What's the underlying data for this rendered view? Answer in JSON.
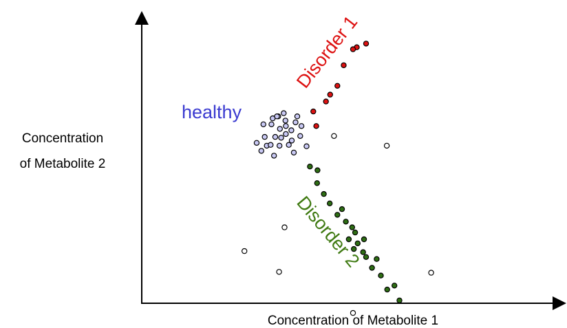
{
  "chart_data": {
    "type": "scatter",
    "title": "",
    "xlabel": "Concentration of Metabolite 1",
    "ylabel": [
      "Concentration",
      "of Metabolite 2"
    ],
    "xlim": [
      0,
      10
    ],
    "ylim": [
      0,
      10
    ],
    "grid": false,
    "colors": {
      "healthy": "#c9c9f4",
      "disorder1": "#dd1111",
      "disorder2": "#2e6e14",
      "outlier": "#ffffff",
      "healthy_label": "#3a3ad0",
      "disorder1_label": "#dd1111",
      "disorder2_label": "#3f7a12"
    },
    "annotations": {
      "healthy": "healthy",
      "disorder1": "Disorder 1",
      "disorder2": "Disorder 2"
    },
    "series": [
      {
        "key": "healthy",
        "points": [
          [
            3.68,
            6.55
          ],
          [
            3.41,
            6.21
          ],
          [
            3.16,
            5.83
          ],
          [
            2.96,
            5.52
          ],
          [
            3.27,
            6.11
          ],
          [
            3.48,
            5.55
          ],
          [
            3.13,
            5.17
          ],
          [
            2.91,
            5.83
          ],
          [
            3.07,
            6.27
          ],
          [
            3.6,
            5.28
          ],
          [
            3.75,
            5.86
          ],
          [
            3.36,
            6.66
          ],
          [
            3.1,
            6.48
          ],
          [
            3.41,
            5.93
          ],
          [
            3.26,
            5.52
          ],
          [
            3.54,
            6.06
          ],
          [
            3.78,
            6.21
          ],
          [
            3.23,
            6.55
          ],
          [
            3.4,
            6.4
          ],
          [
            3.64,
            6.34
          ],
          [
            2.83,
            5.34
          ],
          [
            2.72,
            5.62
          ],
          [
            3.2,
            6.55
          ],
          [
            2.88,
            6.27
          ],
          [
            3.55,
            5.7
          ],
          [
            3.9,
            5.5
          ],
          [
            3.05,
            5.55
          ],
          [
            3.3,
            5.8
          ]
        ]
      },
      {
        "key": "disorder1",
        "points": [
          [
            5.31,
            9.1
          ],
          [
            5.09,
            8.97
          ],
          [
            5.0,
            8.9
          ],
          [
            4.78,
            8.34
          ],
          [
            4.63,
            7.62
          ],
          [
            4.46,
            7.31
          ],
          [
            4.36,
            7.07
          ],
          [
            4.06,
            6.72
          ],
          [
            4.13,
            6.21
          ]
        ]
      },
      {
        "key": "disorder2",
        "points": [
          [
            3.98,
            4.79
          ],
          [
            4.16,
            4.66
          ],
          [
            4.15,
            4.21
          ],
          [
            4.31,
            3.83
          ],
          [
            4.45,
            3.5
          ],
          [
            4.63,
            3.1
          ],
          [
            4.83,
            2.86
          ],
          [
            4.98,
            2.66
          ],
          [
            5.05,
            2.48
          ],
          [
            4.9,
            2.24
          ],
          [
            5.26,
            2.24
          ],
          [
            5.02,
            1.9
          ],
          [
            5.24,
            1.79
          ],
          [
            5.31,
            1.62
          ],
          [
            5.56,
            1.55
          ],
          [
            5.45,
            1.24
          ],
          [
            5.66,
            0.97
          ],
          [
            5.98,
            0.62
          ],
          [
            5.81,
            0.48
          ],
          [
            6.1,
            0.1
          ],
          [
            5.11,
            2.1
          ],
          [
            4.74,
            3.3
          ]
        ]
      },
      {
        "key": "outlier",
        "points": [
          [
            4.55,
            5.86
          ],
          [
            5.8,
            5.52
          ],
          [
            2.43,
            1.83
          ],
          [
            3.25,
            1.1
          ],
          [
            3.38,
            2.66
          ],
          [
            5.0,
            -0.34
          ],
          [
            6.85,
            1.07
          ]
        ]
      }
    ]
  }
}
